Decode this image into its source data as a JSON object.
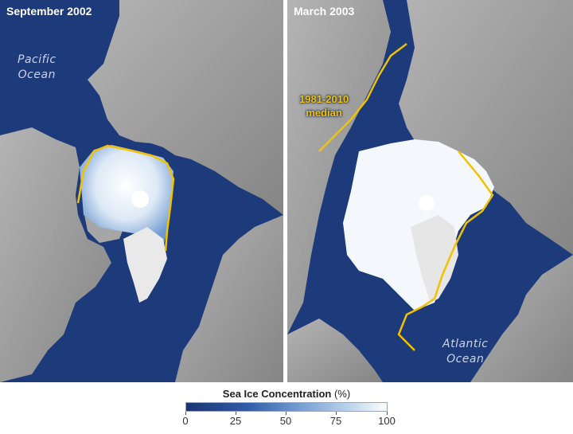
{
  "panels": [
    {
      "title": "September 2002"
    },
    {
      "title": "March 2003"
    }
  ],
  "labels": {
    "pacific_line1": "Pacific",
    "pacific_line2": "Ocean",
    "atlantic_line1": "Atlantic",
    "atlantic_line2": "Ocean",
    "median_line1": "1981-2010",
    "median_line2": "median"
  },
  "legend": {
    "title": "Sea Ice Concentration",
    "unit": "(%)",
    "ticks": [
      "0",
      "25",
      "50",
      "75",
      "100"
    ]
  },
  "colors": {
    "ocean": "#1d3a7a",
    "land": "#9b9b9b",
    "ice": "#ffffff",
    "median_line": "#f2c200"
  }
}
